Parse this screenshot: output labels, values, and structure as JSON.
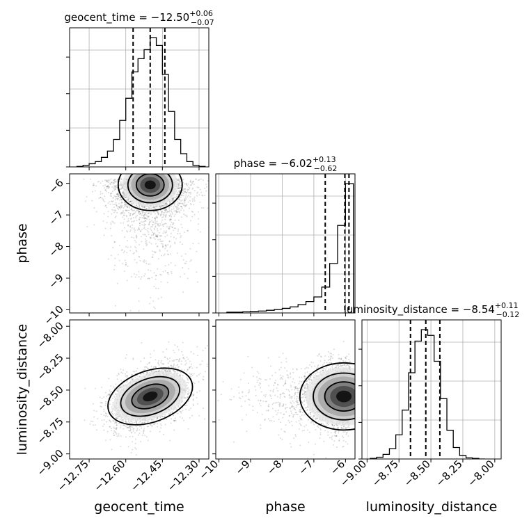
{
  "chart_data": {
    "type": "corner",
    "parameters": [
      {
        "name": "geocent_time",
        "range": [
          -12.83,
          -12.26
        ],
        "ticks": [
          -12.75,
          -12.6,
          -12.45,
          -12.3
        ],
        "tick_labels": [
          "−12.75",
          "−12.60",
          "−12.45",
          "−12.30"
        ],
        "title": {
          "main": "geocent_time = −12.50",
          "sup": "+0.06",
          "sub": "−0.07"
        },
        "quantiles": [
          -12.57,
          -12.5,
          -12.44
        ],
        "histogram": {
          "edges": [
            -12.8,
            -12.775,
            -12.75,
            -12.725,
            -12.7,
            -12.675,
            -12.65,
            -12.625,
            -12.6,
            -12.575,
            -12.55,
            -12.525,
            -12.5,
            -12.475,
            -12.45,
            -12.425,
            -12.4,
            -12.375,
            -12.35,
            -12.325,
            -12.3,
            -12.275
          ],
          "values": [
            1,
            3,
            6,
            10,
            18,
            30,
            52,
            88,
            130,
            180,
            205,
            222,
            245,
            230,
            175,
            105,
            52,
            25,
            10,
            3,
            1
          ]
        }
      },
      {
        "name": "phase",
        "range": [
          -10.1,
          -5.7
        ],
        "ticks": [
          -10,
          -9,
          -8,
          -7,
          -6
        ],
        "tick_labels": [
          "−10",
          "−9",
          "−8",
          "−7",
          "−6"
        ],
        "title": {
          "main": "phase = −6.02",
          "sup": "+0.13",
          "sub": "−0.62"
        },
        "quantiles": [
          -6.64,
          -6.02,
          -5.89
        ],
        "histogram": {
          "edges": [
            -9.75,
            -9.5,
            -9.25,
            -9.0,
            -8.75,
            -8.5,
            -8.25,
            -8.0,
            -7.75,
            -7.5,
            -7.25,
            -7.0,
            -6.75,
            -6.5,
            -6.25,
            -6.0,
            -5.75
          ],
          "values": [
            2,
            2,
            3,
            4,
            5,
            7,
            9,
            12,
            16,
            22,
            30,
            42,
            68,
            130,
            230,
            340
          ]
        }
      },
      {
        "name": "luminosity_distance",
        "range": [
          -9.04,
          -7.95
        ],
        "ticks": [
          -9.0,
          -8.75,
          -8.5,
          -8.25,
          -8.0
        ],
        "tick_labels": [
          "−9.00",
          "−8.75",
          "−8.50",
          "−8.25",
          "−8.00"
        ],
        "title": {
          "main": "luminosity_distance = −8.54",
          "sup": "+0.11",
          "sub": "−0.12"
        },
        "quantiles": [
          -8.66,
          -8.54,
          -8.43
        ],
        "histogram": {
          "edges": [
            -8.975,
            -8.925,
            -8.875,
            -8.825,
            -8.775,
            -8.725,
            -8.675,
            -8.625,
            -8.575,
            -8.525,
            -8.475,
            -8.425,
            -8.375,
            -8.325,
            -8.275,
            -8.225,
            -8.175,
            -8.125,
            -8.075
          ],
          "values": [
            1,
            3,
            8,
            18,
            42,
            85,
            150,
            205,
            225,
            215,
            170,
            105,
            50,
            20,
            6,
            2,
            1,
            0
          ]
        }
      }
    ],
    "pairs": [
      {
        "x": "geocent_time",
        "y": "phase",
        "mean": [
          -12.5,
          -6.05
        ],
        "sd": [
          0.075,
          0.45
        ]
      },
      {
        "x": "geocent_time",
        "y": "luminosity_distance",
        "mean": [
          -12.5,
          -8.55
        ],
        "sd": [
          0.075,
          0.12
        ],
        "corr": 0.45
      },
      {
        "x": "phase",
        "y": "luminosity_distance",
        "mean": [
          -6.05,
          -8.55
        ],
        "sd": [
          0.45,
          0.12
        ]
      }
    ],
    "grid": true
  }
}
